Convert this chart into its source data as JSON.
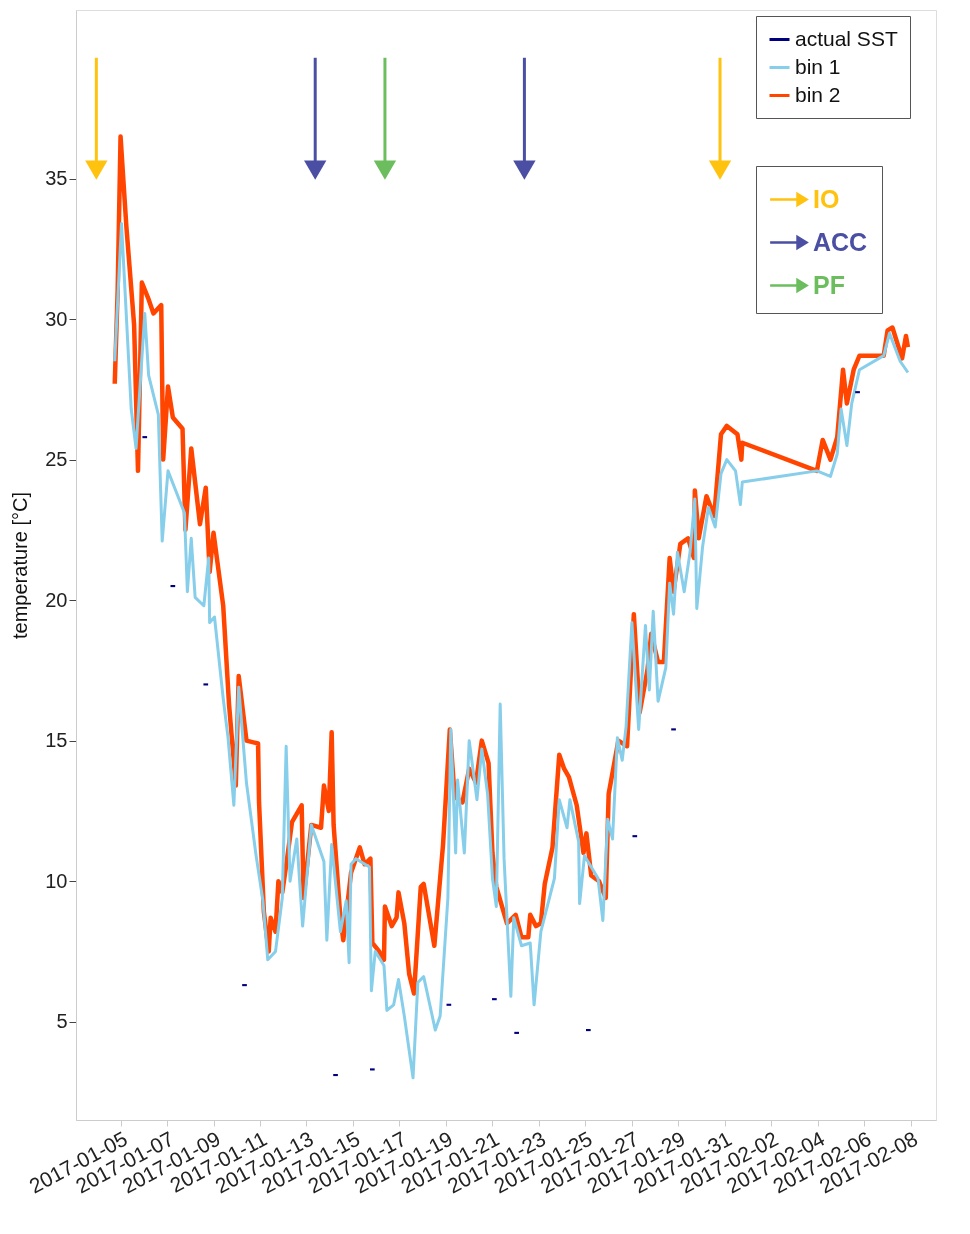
{
  "chart_data": {
    "type": "line",
    "ylabel": "temperature [°C]",
    "xlim": [
      "2017-01-03T02:00",
      "2017-02-09T02:00"
    ],
    "ylim": [
      1.5,
      41
    ],
    "xticks": [
      "2017-01-05",
      "2017-01-07",
      "2017-01-09",
      "2017-01-11",
      "2017-01-13",
      "2017-01-15",
      "2017-01-17",
      "2017-01-19",
      "2017-01-21",
      "2017-01-23",
      "2017-01-25",
      "2017-01-27",
      "2017-01-29",
      "2017-01-31",
      "2017-02-02",
      "2017-02-04",
      "2017-02-06",
      "2017-02-08"
    ],
    "yticks": [
      5,
      10,
      15,
      20,
      25,
      30,
      35
    ],
    "grid": false,
    "legend": "top right",
    "line_style": "solid",
    "series": [
      {
        "name": "actual SST",
        "type": "scatter",
        "marker": "square",
        "color": "#00007f",
        "x": [
          "2017-01-06T01:00",
          "2017-01-07T06:00",
          "2017-01-08T16:00",
          "2017-01-10T08:00",
          "2017-01-14T06:00",
          "2017-01-15T20:00",
          "2017-01-19T03:00",
          "2017-01-21T02:00",
          "2017-01-22T01:00",
          "2017-01-25T03:00",
          "2017-01-27T03:00",
          "2017-01-28T19:00",
          "2017-02-05T17:00"
        ],
        "values": [
          25.8,
          20.5,
          17.0,
          6.3,
          3.1,
          3.3,
          5.6,
          5.8,
          4.6,
          4.7,
          11.6,
          15.4,
          27.4
        ]
      },
      {
        "name": "bin 1",
        "type": "line",
        "color": "#87ceeb",
        "x": [
          "2017-01-04T18:00",
          "2017-01-05T01:00",
          "2017-01-05T11:00",
          "2017-01-05T16:00",
          "2017-01-05T19:00",
          "2017-01-06T01:00",
          "2017-01-06T05:00",
          "2017-01-06T15:00",
          "2017-01-06T19:00",
          "2017-01-07T01:00",
          "2017-01-07T18:00",
          "2017-01-07T21:00",
          "2017-01-08T01:00",
          "2017-01-08T05:00",
          "2017-01-08T14:00",
          "2017-01-08T19:00",
          "2017-01-08T20:00",
          "2017-01-09T01:00",
          "2017-01-09T10:00",
          "2017-01-09T15:00",
          "2017-01-09T21:00",
          "2017-01-10T02:00",
          "2017-01-10T10:00",
          "2017-01-10T20:00",
          "2017-01-11T03:00",
          "2017-01-11T08:00",
          "2017-01-11T16:00",
          "2017-01-11T23:00",
          "2017-01-12T03:00",
          "2017-01-12T07:00",
          "2017-01-12T14:00",
          "2017-01-12T20:00",
          "2017-01-13T05:00",
          "2017-01-13T18:00",
          "2017-01-13T21:00",
          "2017-01-14T02:00",
          "2017-01-14T11:00",
          "2017-01-14T17:00",
          "2017-01-14T20:00",
          "2017-01-14T22:00",
          "2017-01-15T03:00",
          "2017-01-15T17:00",
          "2017-01-15T19:00",
          "2017-01-15T23:00",
          "2017-01-16T08:00",
          "2017-01-16T11:00",
          "2017-01-16T18:00",
          "2017-01-16T23:00",
          "2017-01-17T05:00",
          "2017-01-17T14:00",
          "2017-01-17T19:00",
          "2017-01-18T01:00",
          "2017-01-18T13:00",
          "2017-01-18T18:00",
          "2017-01-19T02:00",
          "2017-01-19T05:00",
          "2017-01-19T10:00",
          "2017-01-19T12:00",
          "2017-01-19T19:00",
          "2017-01-20T00:00",
          "2017-01-20T08:00",
          "2017-01-20T13:00",
          "2017-01-20T19:00",
          "2017-01-21T00:00",
          "2017-01-21T04:00",
          "2017-01-21T08:00",
          "2017-01-21T12:00",
          "2017-01-21T19:00",
          "2017-01-21T22:00",
          "2017-01-22T06:00",
          "2017-01-22T15:00",
          "2017-01-22T19:00",
          "2017-01-23T02:00",
          "2017-01-23T16:00",
          "2017-01-23T21:00",
          "2017-01-24T05:00",
          "2017-01-24T08:00",
          "2017-01-24T17:00",
          "2017-01-24T18:00",
          "2017-01-24T23:00",
          "2017-01-25T13:00",
          "2017-01-25T18:00",
          "2017-01-25T23:00",
          "2017-01-26T04:00",
          "2017-01-26T09:00",
          "2017-01-26T14:00",
          "2017-01-26T18:00",
          "2017-01-27T00:00",
          "2017-01-27T07:00",
          "2017-01-27T14:00",
          "2017-01-27T18:00",
          "2017-01-27T22:00",
          "2017-01-28T03:00",
          "2017-01-28T11:00",
          "2017-01-28T15:00",
          "2017-01-28T19:00",
          "2017-01-28T23:00",
          "2017-01-29T06:00",
          "2017-01-29T12:00",
          "2017-01-29T17:00",
          "2017-01-29T19:00",
          "2017-01-30T01:00",
          "2017-01-30T07:00",
          "2017-01-30T14:00",
          "2017-01-30T20:00",
          "2017-01-31T02:00",
          "2017-01-31T11:00",
          "2017-01-31T16:00",
          "2017-01-31T18:00",
          "2017-02-03T23:00",
          "2017-02-04T13:00",
          "2017-02-04T20:00",
          "2017-02-05T00:00",
          "2017-02-05T06:00",
          "2017-02-05T11:00",
          "2017-02-05T19:00",
          "2017-02-06T20:00",
          "2017-02-07T02:00",
          "2017-02-07T13:00",
          "2017-02-07T21:00"
        ],
        "values": [
          28.5,
          33.4,
          26.8,
          25.4,
          27.0,
          30.2,
          28.0,
          26.6,
          22.1,
          24.6,
          23.1,
          20.3,
          22.2,
          20.1,
          19.8,
          21.5,
          19.2,
          19.4,
          16.5,
          15.1,
          12.7,
          16.9,
          13.5,
          10.9,
          9.3,
          7.2,
          7.5,
          9.4,
          14.8,
          10.0,
          11.5,
          8.4,
          12.0,
          10.7,
          7.9,
          11.3,
          8.2,
          9.3,
          7.1,
          10.6,
          10.8,
          10.5,
          6.1,
          7.5,
          7.0,
          5.4,
          5.6,
          6.5,
          5.2,
          3.0,
          6.4,
          6.6,
          4.7,
          5.2,
          9.4,
          15.4,
          11.0,
          13.6,
          11.0,
          15.0,
          12.9,
          14.7,
          13.1,
          10.1,
          9.1,
          16.3,
          10.8,
          5.9,
          8.7,
          7.7,
          7.8,
          5.6,
          8.2,
          10.1,
          12.9,
          11.9,
          12.9,
          11.4,
          9.2,
          10.9,
          10.1,
          8.6,
          12.2,
          11.5,
          15.1,
          14.3,
          15.5,
          19.2,
          15.4,
          19.1,
          16.8,
          19.6,
          16.4,
          17.6,
          20.6,
          19.5,
          21.7,
          20.3,
          21.7,
          23.6,
          19.7,
          21.9,
          23.3,
          22.6,
          24.5,
          25.0,
          24.6,
          23.4,
          24.2,
          24.6,
          24.4,
          25.2,
          26.8,
          25.5,
          27.0,
          28.2,
          28.7,
          29.5,
          28.5,
          28.1
        ]
      },
      {
        "name": "bin 2",
        "type": "line",
        "color": "#ff4500",
        "x": [
          "2017-01-04T18:00",
          "2017-01-04T21:00",
          "2017-01-05T00:00",
          "2017-01-05T06:00",
          "2017-01-05T14:00",
          "2017-01-05T18:00",
          "2017-01-05T22:00",
          "2017-01-06T05:00",
          "2017-01-06T10:00",
          "2017-01-06T18:00",
          "2017-01-06T20:00",
          "2017-01-07T01:00",
          "2017-01-07T06:00",
          "2017-01-07T16:00",
          "2017-01-07T19:00",
          "2017-01-08T01:00",
          "2017-01-08T10:00",
          "2017-01-08T16:00",
          "2017-01-08T20:00",
          "2017-01-09T00:00",
          "2017-01-09T10:00",
          "2017-01-09T16:00",
          "2017-01-09T23:00",
          "2017-01-10T02:00",
          "2017-01-10T10:00",
          "2017-01-10T22:00",
          "2017-01-10T23:00",
          "2017-01-11T04:00",
          "2017-01-11T09:00",
          "2017-01-11T11:00",
          "2017-01-11T16:00",
          "2017-01-11T19:00",
          "2017-01-11T23:00",
          "2017-01-12T04:00",
          "2017-01-12T09:00",
          "2017-01-12T19:00",
          "2017-01-12T21:00",
          "2017-01-13T05:00",
          "2017-01-13T15:00",
          "2017-01-13T18:00",
          "2017-01-13T23:00",
          "2017-01-14T02:00",
          "2017-01-14T04:00",
          "2017-01-14T11:00",
          "2017-01-14T14:00",
          "2017-01-14T22:00",
          "2017-01-15T07:00",
          "2017-01-15T12:00",
          "2017-01-15T18:00",
          "2017-01-15T20:00",
          "2017-01-16T03:00",
          "2017-01-16T08:00",
          "2017-01-16T09:00",
          "2017-01-16T16:00",
          "2017-01-16T21:00",
          "2017-01-16T23:00",
          "2017-01-17T05:00",
          "2017-01-17T10:00",
          "2017-01-17T15:00",
          "2017-01-17T22:00",
          "2017-01-18T01:00",
          "2017-01-18T12:00",
          "2017-01-18T21:00",
          "2017-01-19T04:00",
          "2017-01-19T09:00",
          "2017-01-19T17:00",
          "2017-01-20T00:00",
          "2017-01-20T07:00",
          "2017-01-20T13:00",
          "2017-01-20T20:00",
          "2017-01-21T00:00",
          "2017-01-21T04:00",
          "2017-01-21T15:00",
          "2017-01-22T00:00",
          "2017-01-22T06:00",
          "2017-01-22T13:00",
          "2017-01-22T15:00",
          "2017-01-22T21:00",
          "2017-01-23T02:00",
          "2017-01-23T06:00",
          "2017-01-23T14:00",
          "2017-01-23T21:00",
          "2017-01-24T02:00",
          "2017-01-24T07:00",
          "2017-01-24T15:00",
          "2017-01-24T22:00",
          "2017-01-25T01:00",
          "2017-01-25T06:00",
          "2017-01-25T14:00",
          "2017-01-25T21:00",
          "2017-01-26T00:00",
          "2017-01-26T10:00",
          "2017-01-26T19:00",
          "2017-01-27T02:00",
          "2017-01-27T08:00",
          "2017-01-27T16:00",
          "2017-01-27T20:00",
          "2017-01-28T03:00",
          "2017-01-28T09:00",
          "2017-01-28T15:00",
          "2017-01-28T19:00",
          "2017-01-29T02:00",
          "2017-01-29T10:00",
          "2017-01-29T16:00",
          "2017-01-29T17:00",
          "2017-01-29T21:00",
          "2017-01-30T05:00",
          "2017-01-30T13:00",
          "2017-01-30T20:00",
          "2017-01-31T02:00",
          "2017-01-31T13:00",
          "2017-01-31T17:00",
          "2017-01-31T18:00",
          "2017-02-03T23:00",
          "2017-02-04T05:00",
          "2017-02-04T13:00",
          "2017-02-04T20:00",
          "2017-02-05T02:00",
          "2017-02-05T06:00",
          "2017-02-05T13:00",
          "2017-02-05T19:00",
          "2017-02-06T20:00",
          "2017-02-07T00:00",
          "2017-02-07T05:00",
          "2017-02-07T15:00",
          "2017-02-07T19:00",
          "2017-02-07T21:00"
        ],
        "values": [
          27.7,
          31.0,
          36.5,
          33.3,
          29.8,
          24.6,
          31.3,
          30.7,
          30.2,
          30.5,
          25.0,
          27.6,
          26.5,
          26.1,
          22.5,
          25.4,
          22.7,
          24.0,
          21.0,
          22.4,
          19.8,
          16.3,
          13.4,
          17.3,
          15.0,
          14.9,
          12.8,
          8.9,
          7.5,
          8.7,
          8.2,
          10.0,
          9.6,
          10.8,
          12.1,
          12.7,
          9.4,
          12.0,
          11.9,
          13.4,
          12.5,
          15.3,
          12.0,
          8.7,
          7.9,
          10.3,
          11.2,
          10.6,
          10.8,
          7.8,
          7.5,
          7.2,
          9.1,
          8.4,
          8.7,
          9.6,
          8.5,
          6.7,
          6.0,
          9.8,
          9.9,
          7.7,
          11.3,
          15.4,
          13.0,
          12.8,
          14.0,
          13.5,
          15.0,
          14.2,
          11.0,
          9.8,
          8.5,
          8.8,
          8.0,
          8.0,
          8.8,
          8.4,
          8.5,
          9.9,
          11.2,
          14.5,
          14.0,
          13.7,
          12.7,
          11.0,
          11.7,
          10.2,
          10.0,
          9.4,
          13.1,
          15.0,
          14.8,
          19.5,
          16.0,
          17.5,
          18.8,
          17.8,
          17.8,
          21.5,
          20.3,
          22.0,
          22.2,
          21.5,
          23.9,
          22.2,
          23.7,
          23.0,
          25.9,
          26.2,
          25.9,
          25.0,
          25.6,
          24.6,
          25.7,
          25.0,
          25.8,
          28.2,
          27.0,
          28.2,
          28.7,
          28.7,
          29.6,
          29.7,
          28.6,
          29.4,
          29.0
        ]
      },
      {
        "name": "IO",
        "type": "scatter",
        "marker": "triangle",
        "color": "#ffc20e",
        "x": [
          "2017-01-03T23:00",
          "2017-01-30T19:00"
        ],
        "values": [
          35.3,
          35.3
        ],
        "errors": [
          [
            35.3,
            39.3
          ],
          [
            35.3,
            39.3
          ]
        ]
      },
      {
        "name": "ACC",
        "type": "scatter",
        "marker": "triangle",
        "color": "#4a4fa3",
        "x": [
          "2017-01-13T09:00",
          "2017-01-22T09:00"
        ],
        "values": [
          35.3,
          35.3
        ],
        "errors": [
          [
            35.3,
            39.3
          ],
          [
            35.3,
            39.3
          ]
        ]
      },
      {
        "name": "PF",
        "type": "scatter",
        "marker": "triangle",
        "color": "#6cbd5e",
        "x": [
          "2017-01-16T09:00"
        ],
        "values": [
          35.3
        ],
        "errors": [
          [
            35.3,
            39.3
          ]
        ]
      }
    ]
  }
}
